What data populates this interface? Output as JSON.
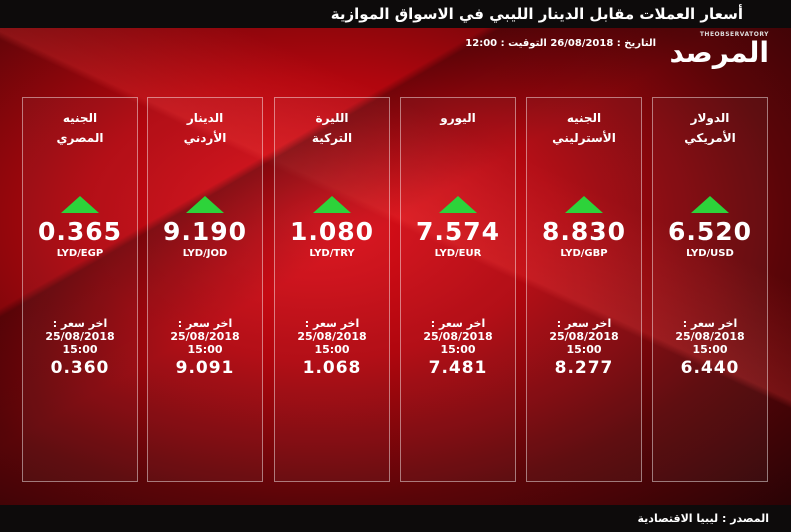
{
  "header": {
    "title": "أسعار العملات مقابل الدينار الليبي في الاسواق الموازية",
    "date_line": "التاريخ : 26/08/2018 التوقيت : 12:00",
    "logo_en": "THEOBSERVATORY",
    "logo_ar": "المرصد"
  },
  "colors": {
    "up_arrow": "#2dd33a",
    "accent": "#c8070f"
  },
  "cards": [
    {
      "name1": "الدولار",
      "name2": "الأمريكي",
      "rate": "6.520",
      "pair": "LYD/USD",
      "trend": "up",
      "last_label": "اخر سعر :",
      "last_date": "25/08/2018",
      "last_time": "15:00",
      "last_rate": "6.440"
    },
    {
      "name1": "الجنيه",
      "name2": "الأسترليني",
      "rate": "8.830",
      "pair": "LYD/GBP",
      "trend": "up",
      "last_label": "اخر سعر :",
      "last_date": "25/08/2018",
      "last_time": "15:00",
      "last_rate": "8.277"
    },
    {
      "name1": "اليورو",
      "name2": "",
      "rate": "7.574",
      "pair": "LYD/EUR",
      "trend": "up",
      "last_label": "اخر سعر :",
      "last_date": "25/08/2018",
      "last_time": "15:00",
      "last_rate": "7.481"
    },
    {
      "name1": "الليرة",
      "name2": "التركية",
      "rate": "1.080",
      "pair": "LYD/TRY",
      "trend": "up",
      "last_label": "اخر سعر :",
      "last_date": "25/08/2018",
      "last_time": "15:00",
      "last_rate": "1.068"
    },
    {
      "name1": "الدينار",
      "name2": "الأردني",
      "rate": "9.190",
      "pair": "LYD/JOD",
      "trend": "up",
      "last_label": "اخر سعر :",
      "last_date": "25/08/2018",
      "last_time": "15:00",
      "last_rate": "9.091"
    },
    {
      "name1": "الجنيه",
      "name2": "المصري",
      "rate": "0.365",
      "pair": "LYD/EGP",
      "trend": "up",
      "last_label": "اخر سعر :",
      "last_date": "25/08/2018",
      "last_time": "15:00",
      "last_rate": "0.360"
    }
  ],
  "footer": {
    "source": "المصدر : ليبيا الاقتصادية"
  }
}
